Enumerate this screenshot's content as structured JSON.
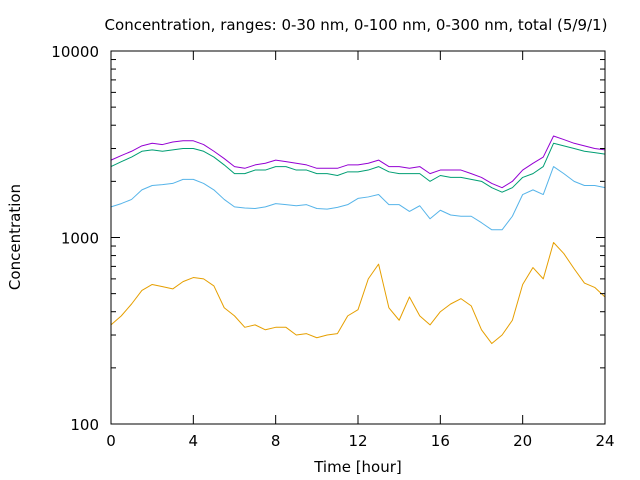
{
  "chart_data": {
    "type": "line",
    "title": "Concentration, ranges: 0-30 nm, 0-100 nm, 0-300 nm, total (5/9/1)",
    "xlabel": "Time [hour]",
    "ylabel": "Concentration",
    "xlim": [
      0,
      24
    ],
    "ylim": [
      100,
      10000
    ],
    "yscale": "log",
    "grid": false,
    "x_ticks": [
      0,
      4,
      8,
      12,
      16,
      20,
      24
    ],
    "x_tick_labels": [
      "0",
      "4",
      "8",
      "12",
      "16",
      "20",
      "24"
    ],
    "y_ticks": [
      100,
      1000,
      10000
    ],
    "y_tick_labels": [
      "100",
      "1000",
      "10000"
    ],
    "x": [
      0,
      0.5,
      1,
      1.5,
      2,
      2.5,
      3,
      3.5,
      4,
      4.5,
      5,
      5.5,
      6,
      6.5,
      7,
      7.5,
      8,
      8.5,
      9,
      9.5,
      10,
      10.5,
      11,
      11.5,
      12,
      12.5,
      13,
      13.5,
      14,
      14.5,
      15,
      15.5,
      16,
      16.5,
      17,
      17.5,
      18,
      18.5,
      19,
      19.5,
      20,
      20.5,
      21,
      21.5,
      22,
      22.5,
      23,
      23.5,
      24
    ],
    "series": [
      {
        "color": "#e69f00",
        "values": [
          340,
          380,
          440,
          520,
          560,
          545,
          530,
          580,
          610,
          600,
          550,
          420,
          380,
          330,
          340,
          320,
          330,
          330,
          300,
          305,
          290,
          300,
          305,
          380,
          410,
          600,
          720,
          420,
          360,
          480,
          380,
          340,
          400,
          440,
          470,
          430,
          320,
          270,
          300,
          360,
          560,
          690,
          600,
          940,
          820,
          680,
          570,
          540,
          480
        ]
      },
      {
        "color": "#56b4e9",
        "values": [
          1460,
          1520,
          1600,
          1800,
          1900,
          1920,
          1950,
          2050,
          2050,
          1950,
          1800,
          1600,
          1460,
          1440,
          1430,
          1460,
          1520,
          1500,
          1480,
          1500,
          1430,
          1420,
          1450,
          1500,
          1620,
          1650,
          1700,
          1500,
          1500,
          1380,
          1480,
          1260,
          1400,
          1320,
          1300,
          1300,
          1200,
          1100,
          1100,
          1300,
          1700,
          1800,
          1700,
          2400,
          2200,
          2000,
          1900,
          1900,
          1850
        ]
      },
      {
        "color": "#009e73",
        "values": [
          2400,
          2550,
          2700,
          2900,
          2950,
          2900,
          2950,
          3000,
          3000,
          2900,
          2700,
          2450,
          2200,
          2200,
          2300,
          2300,
          2400,
          2400,
          2300,
          2300,
          2200,
          2200,
          2150,
          2250,
          2250,
          2300,
          2400,
          2250,
          2200,
          2200,
          2200,
          2000,
          2150,
          2100,
          2100,
          2050,
          2000,
          1850,
          1750,
          1850,
          2100,
          2200,
          2400,
          3200,
          3100,
          3000,
          2900,
          2850,
          2800
        ]
      },
      {
        "color": "#9400d3",
        "values": [
          2600,
          2750,
          2900,
          3100,
          3200,
          3150,
          3250,
          3300,
          3300,
          3150,
          2900,
          2650,
          2400,
          2350,
          2450,
          2500,
          2600,
          2550,
          2500,
          2450,
          2350,
          2350,
          2350,
          2450,
          2450,
          2500,
          2600,
          2400,
          2400,
          2350,
          2400,
          2200,
          2300,
          2300,
          2300,
          2200,
          2100,
          1950,
          1850,
          2000,
          2300,
          2500,
          2700,
          3500,
          3350,
          3200,
          3100,
          3000,
          2950
        ]
      }
    ]
  }
}
